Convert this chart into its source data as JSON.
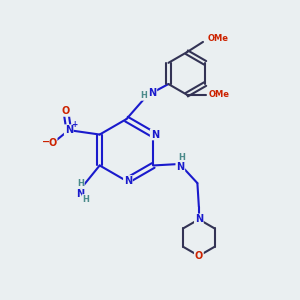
{
  "bg_color": "#eaeff1",
  "bond_color": "#1a1acc",
  "dark_bond": "#222244",
  "atom_colors": {
    "N": "#1a1acc",
    "O": "#cc2200",
    "C": "#111133",
    "H": "#4a8a8a"
  },
  "figsize": [
    3.0,
    3.0
  ],
  "dpi": 100
}
